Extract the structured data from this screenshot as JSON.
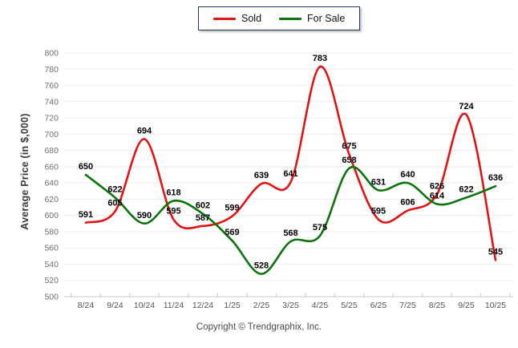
{
  "footer": {
    "copyright": "Copyright © Trendgraphix, Inc."
  },
  "styles": {
    "grid_color": "#ececec",
    "axis_color": "#c8c8c8",
    "tick_color": "#c8c8c8",
    "y_tick_label_color": "#6e6e6e",
    "x_tick_label_color": "#555555",
    "data_label_color": "#000000",
    "legend_border_color": "#203864",
    "sold_color": "#e01414",
    "for_sale_color": "#0a750a"
  },
  "chart_data": {
    "type": "line",
    "title": "",
    "xlabel": "",
    "ylabel": "Average Price (in $,000)",
    "ylim": [
      500,
      800
    ],
    "ytick_step": 20,
    "grid": "horizontal",
    "legend_position": "top-center",
    "categories": [
      "8/24",
      "9/24",
      "10/24",
      "11/24",
      "12/24",
      "1/25",
      "2/25",
      "3/25",
      "4/25",
      "5/25",
      "6/25",
      "7/25",
      "8/25",
      "9/25",
      "10/25"
    ],
    "series": [
      {
        "name": "Sold",
        "color": "#e01414",
        "values": [
          591,
          605,
          694,
          595,
          587,
          599,
          639,
          641,
          783,
          675,
          595,
          606,
          626,
          724,
          545
        ]
      },
      {
        "name": "For Sale",
        "color": "#0a750a",
        "values": [
          650,
          622,
          590,
          618,
          602,
          569,
          528,
          568,
          575,
          658,
          631,
          640,
          614,
          622,
          636
        ]
      }
    ]
  }
}
